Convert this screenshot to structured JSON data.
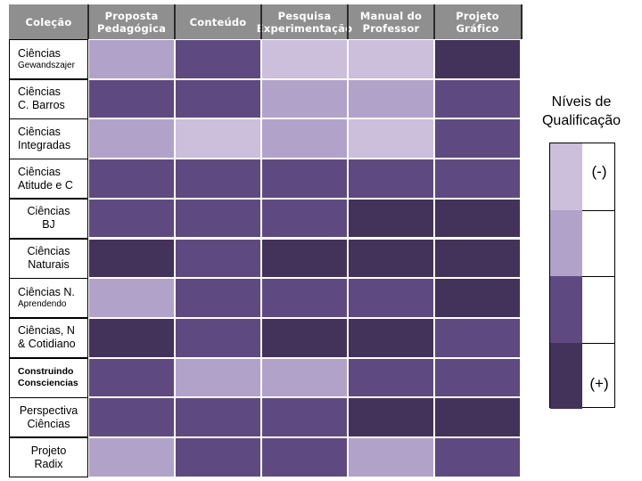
{
  "chart_data": {
    "type": "heatmap",
    "columns": [
      "Coleção",
      "Proposta Pedagógica",
      "Conteúdo",
      "Pesquisa Experimentação",
      "Manual do Professor",
      "Projeto Gráfico"
    ],
    "header_lines": [
      [
        "Coleção"
      ],
      [
        "Proposta",
        "Pedagógica"
      ],
      [
        "Conteúdo"
      ],
      [
        "Pesquisa",
        "Experimentação"
      ],
      [
        "Manual do",
        "Professor"
      ],
      [
        "Projeto Gráfico"
      ]
    ],
    "rows": [
      {
        "label_lines": [
          "Ciências",
          "Gewandszajer"
        ],
        "levels": [
          2,
          3,
          1,
          1,
          4
        ]
      },
      {
        "label_lines": [
          "Ciências",
          "C. Barros"
        ],
        "levels": [
          3,
          3,
          2,
          2,
          3
        ]
      },
      {
        "label_lines": [
          "Ciências",
          "Integradas"
        ],
        "levels": [
          2,
          1,
          2,
          1,
          3
        ]
      },
      {
        "label_lines": [
          "Ciências",
          "Atitude e C"
        ],
        "levels": [
          3,
          3,
          3,
          3,
          3
        ]
      },
      {
        "label_lines": [
          "Ciências",
          "BJ"
        ],
        "levels": [
          3,
          3,
          3,
          4,
          4
        ]
      },
      {
        "label_lines": [
          "Ciências",
          "Naturais"
        ],
        "levels": [
          4,
          3,
          4,
          4,
          4
        ]
      },
      {
        "label_lines": [
          "Ciências N.",
          "Aprendendo"
        ],
        "levels": [
          2,
          3,
          3,
          3,
          4
        ]
      },
      {
        "label_lines": [
          "Ciências, N",
          "& Cotidiano"
        ],
        "levels": [
          4,
          3,
          4,
          4,
          3
        ]
      },
      {
        "label_lines": [
          "Construindo",
          "Consciencias"
        ],
        "levels": [
          3,
          2,
          2,
          3,
          3
        ]
      },
      {
        "label_lines": [
          "Perspectiva",
          "Ciências"
        ],
        "levels": [
          3,
          3,
          3,
          4,
          4
        ]
      },
      {
        "label_lines": [
          "Projeto",
          "Radix"
        ],
        "levels": [
          2,
          3,
          3,
          2,
          3
        ]
      }
    ],
    "legend": {
      "title_lines": [
        "Níveis de",
        "Qualificação"
      ],
      "low_label": "(-)",
      "high_label": "(+)",
      "levels": [
        1,
        2,
        3,
        4
      ]
    },
    "colors": {
      "1": "#cbbfdc",
      "2": "#b1a2ca",
      "3": "#5e4a80",
      "4": "#433259",
      "header_bg": "#8f8f8f",
      "header_text": "#ffffff"
    }
  }
}
